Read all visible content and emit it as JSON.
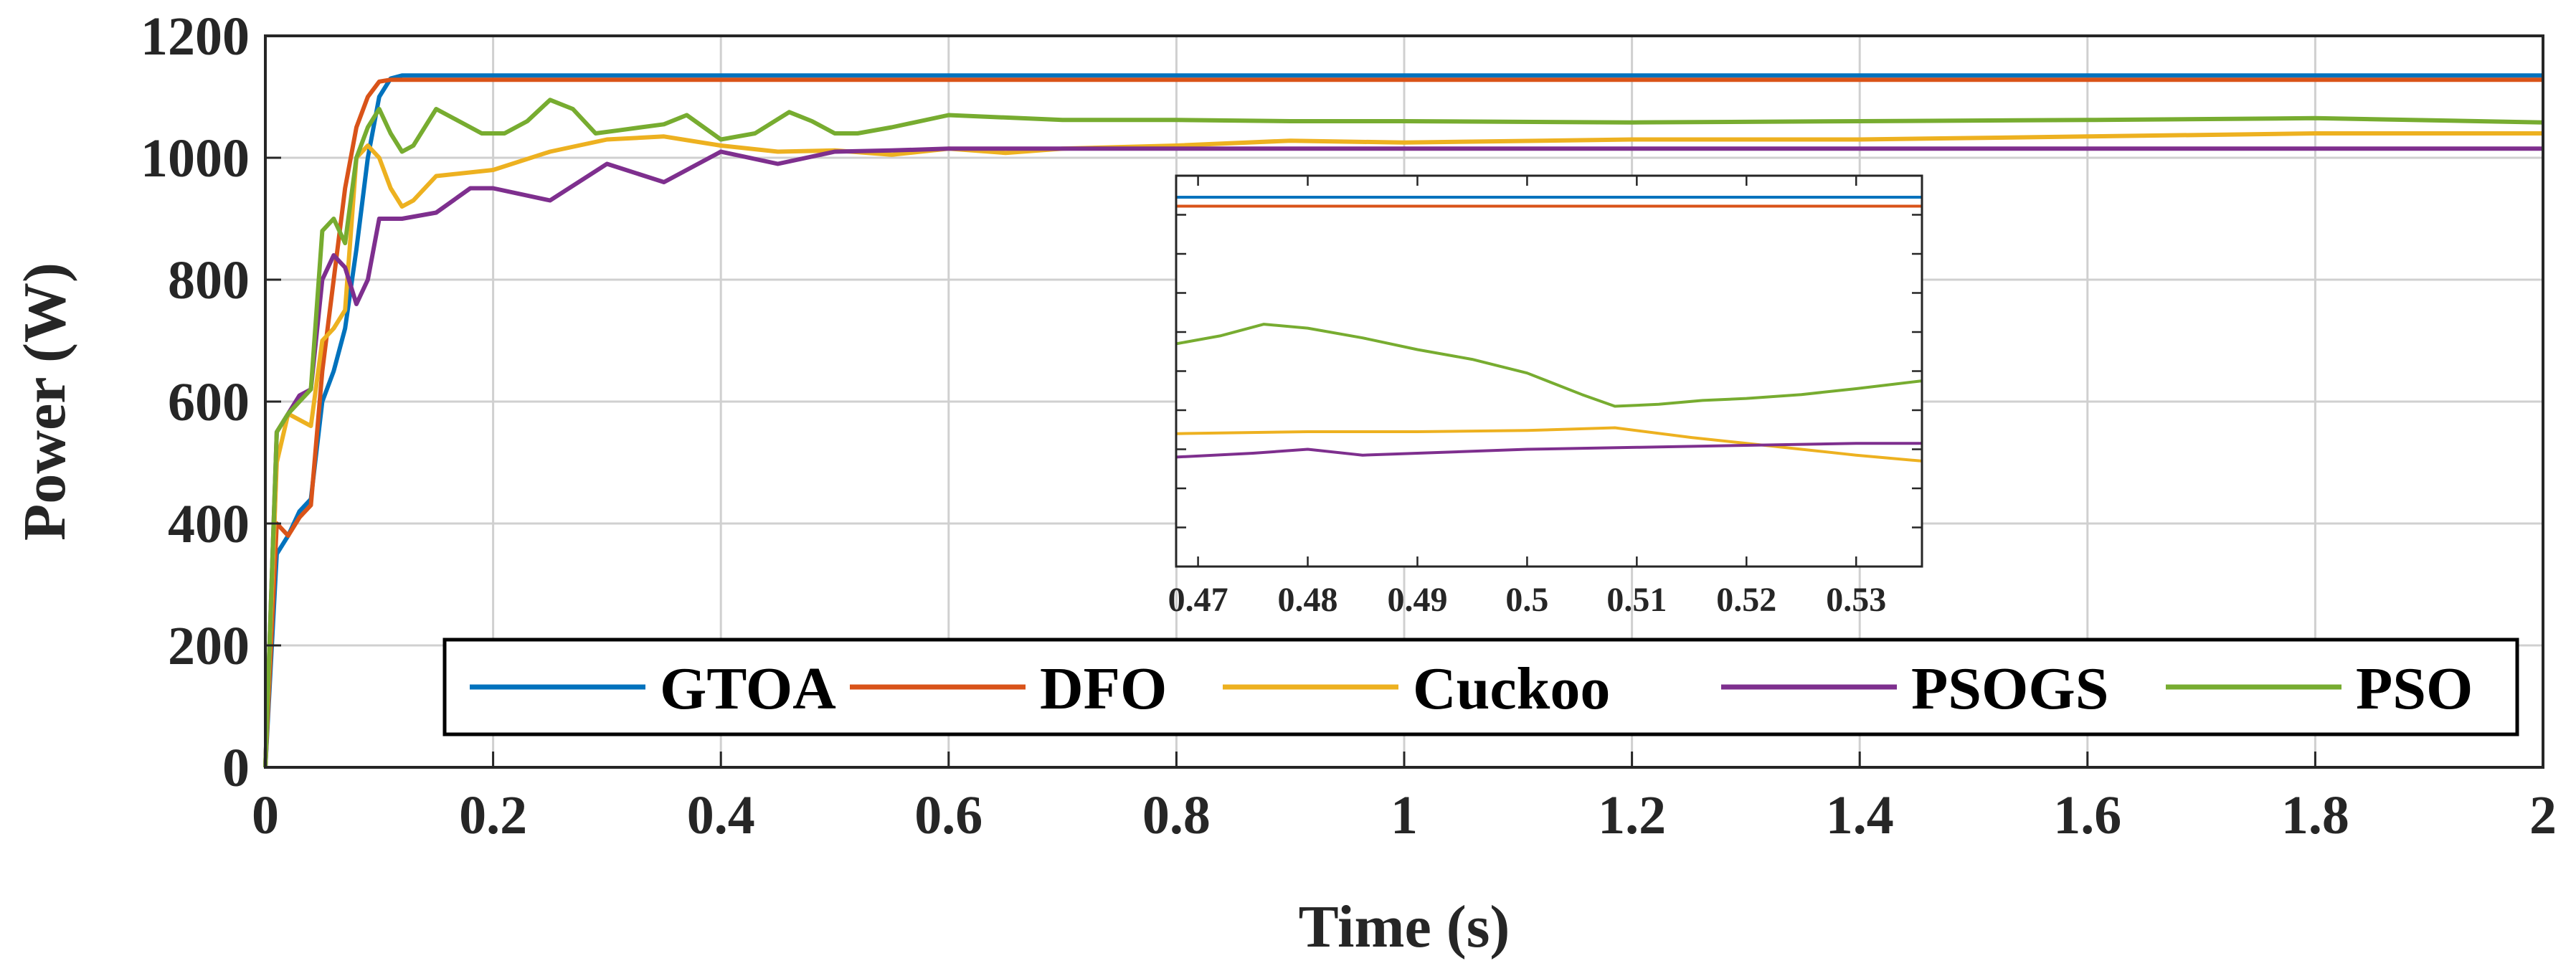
{
  "chart_data": [
    {
      "id": "main",
      "type": "line",
      "xlabel": "Time (s)",
      "ylabel": "Power (W)",
      "xlim": [
        0,
        2
      ],
      "ylim": [
        0,
        1200
      ],
      "xticks": [
        0,
        0.2,
        0.4,
        0.6,
        0.8,
        1,
        1.2,
        1.4,
        1.6,
        1.8,
        2
      ],
      "xtick_labels": [
        "0",
        "0.2",
        "0.4",
        "0.6",
        "0.8",
        "1",
        "1.2",
        "1.4",
        "1.6",
        "1.8",
        "2"
      ],
      "yticks": [
        0,
        200,
        400,
        600,
        800,
        1000,
        1200
      ],
      "ytick_labels": [
        "0",
        "200",
        "400",
        "600",
        "800",
        "1000",
        "1200"
      ],
      "grid": true,
      "legend_position": "bottom-right, single row",
      "series": [
        {
          "name": "GTOA",
          "color": "#0072BD",
          "x": [
            0,
            0.01,
            0.02,
            0.03,
            0.04,
            0.05,
            0.06,
            0.07,
            0.08,
            0.09,
            0.1,
            0.11,
            0.12,
            0.2,
            0.5,
            1.0,
            1.5,
            2.0
          ],
          "y": [
            0,
            350,
            380,
            420,
            440,
            600,
            650,
            720,
            850,
            1000,
            1100,
            1130,
            1135,
            1135,
            1135,
            1135,
            1135,
            1135
          ]
        },
        {
          "name": "DFO",
          "color": "#D95319",
          "x": [
            0,
            0.01,
            0.02,
            0.03,
            0.04,
            0.05,
            0.06,
            0.07,
            0.08,
            0.09,
            0.1,
            0.11,
            0.2,
            0.5,
            1.0,
            1.5,
            2.0
          ],
          "y": [
            0,
            400,
            380,
            410,
            430,
            650,
            800,
            950,
            1050,
            1100,
            1125,
            1128,
            1128,
            1128,
            1128,
            1128,
            1128
          ]
        },
        {
          "name": "Cuckoo",
          "color": "#EDB120",
          "x": [
            0,
            0.01,
            0.02,
            0.03,
            0.04,
            0.05,
            0.06,
            0.07,
            0.08,
            0.09,
            0.1,
            0.11,
            0.12,
            0.13,
            0.15,
            0.2,
            0.25,
            0.3,
            0.35,
            0.4,
            0.45,
            0.5,
            0.55,
            0.6,
            0.65,
            0.7,
            0.8,
            0.9,
            1.0,
            1.2,
            1.4,
            1.6,
            1.8,
            2.0
          ],
          "y": [
            0,
            500,
            580,
            570,
            560,
            700,
            720,
            750,
            1000,
            1020,
            1000,
            950,
            920,
            930,
            970,
            980,
            1010,
            1030,
            1035,
            1020,
            1010,
            1012,
            1005,
            1015,
            1008,
            1015,
            1020,
            1028,
            1025,
            1030,
            1030,
            1035,
            1040,
            1040
          ]
        },
        {
          "name": "PSOGS",
          "color": "#7E2F8E",
          "x": [
            0,
            0.01,
            0.02,
            0.03,
            0.04,
            0.05,
            0.06,
            0.07,
            0.08,
            0.09,
            0.1,
            0.12,
            0.15,
            0.18,
            0.2,
            0.25,
            0.3,
            0.35,
            0.4,
            0.45,
            0.5,
            0.55,
            0.6,
            0.8,
            1.0,
            1.5,
            2.0
          ],
          "y": [
            0,
            550,
            580,
            610,
            620,
            800,
            840,
            820,
            760,
            800,
            900,
            900,
            910,
            950,
            950,
            930,
            990,
            960,
            1010,
            990,
            1010,
            1012,
            1015,
            1015,
            1015,
            1015,
            1015
          ]
        },
        {
          "name": "PSO",
          "color": "#77AC30",
          "x": [
            0,
            0.01,
            0.02,
            0.03,
            0.04,
            0.05,
            0.06,
            0.07,
            0.08,
            0.09,
            0.1,
            0.11,
            0.12,
            0.13,
            0.15,
            0.17,
            0.19,
            0.21,
            0.23,
            0.25,
            0.27,
            0.29,
            0.31,
            0.33,
            0.35,
            0.37,
            0.4,
            0.43,
            0.46,
            0.48,
            0.5,
            0.52,
            0.55,
            0.6,
            0.7,
            0.8,
            0.9,
            1.0,
            1.2,
            1.4,
            1.6,
            1.8,
            2.0
          ],
          "y": [
            0,
            550,
            580,
            600,
            620,
            880,
            900,
            860,
            1000,
            1050,
            1080,
            1040,
            1010,
            1020,
            1080,
            1060,
            1040,
            1040,
            1060,
            1095,
            1080,
            1040,
            1045,
            1050,
            1055,
            1070,
            1030,
            1040,
            1075,
            1060,
            1040,
            1040,
            1050,
            1070,
            1062,
            1062,
            1060,
            1060,
            1058,
            1060,
            1062,
            1065,
            1058
          ]
        }
      ]
    },
    {
      "id": "inset",
      "type": "line",
      "xlim": [
        0.468,
        0.536
      ],
      "ylim": [
        0,
        1
      ],
      "xticks": [
        0.47,
        0.48,
        0.49,
        0.5,
        0.51,
        0.52,
        0.53
      ],
      "xtick_labels": [
        "0.47",
        "0.48",
        "0.49",
        "0.5",
        "0.51",
        "0.52",
        "0.53"
      ],
      "y_unit_note": "normalized zoom scale (no y tick labels shown)",
      "series": [
        {
          "name": "GTOA",
          "color": "#0072BD",
          "x": [
            0.468,
            0.536
          ],
          "y": [
            0.945,
            0.945
          ]
        },
        {
          "name": "DFO",
          "color": "#D95319",
          "x": [
            0.468,
            0.536
          ],
          "y": [
            0.922,
            0.922
          ]
        },
        {
          "name": "PSO",
          "color": "#77AC30",
          "x": [
            0.468,
            0.472,
            0.476,
            0.48,
            0.485,
            0.49,
            0.495,
            0.5,
            0.505,
            0.508,
            0.512,
            0.516,
            0.52,
            0.525,
            0.53,
            0.536
          ],
          "y": [
            0.57,
            0.59,
            0.62,
            0.61,
            0.585,
            0.555,
            0.53,
            0.495,
            0.44,
            0.41,
            0.415,
            0.425,
            0.43,
            0.44,
            0.455,
            0.475
          ]
        },
        {
          "name": "Cuckoo",
          "color": "#EDB120",
          "x": [
            0.468,
            0.48,
            0.49,
            0.5,
            0.508,
            0.515,
            0.52,
            0.525,
            0.53,
            0.536
          ],
          "y": [
            0.34,
            0.345,
            0.345,
            0.348,
            0.355,
            0.33,
            0.315,
            0.3,
            0.285,
            0.27
          ]
        },
        {
          "name": "PSOGS",
          "color": "#7E2F8E",
          "x": [
            0.468,
            0.475,
            0.48,
            0.485,
            0.49,
            0.5,
            0.51,
            0.52,
            0.53,
            0.536
          ],
          "y": [
            0.28,
            0.29,
            0.3,
            0.285,
            0.29,
            0.3,
            0.305,
            0.31,
            0.315,
            0.315
          ]
        }
      ]
    }
  ]
}
